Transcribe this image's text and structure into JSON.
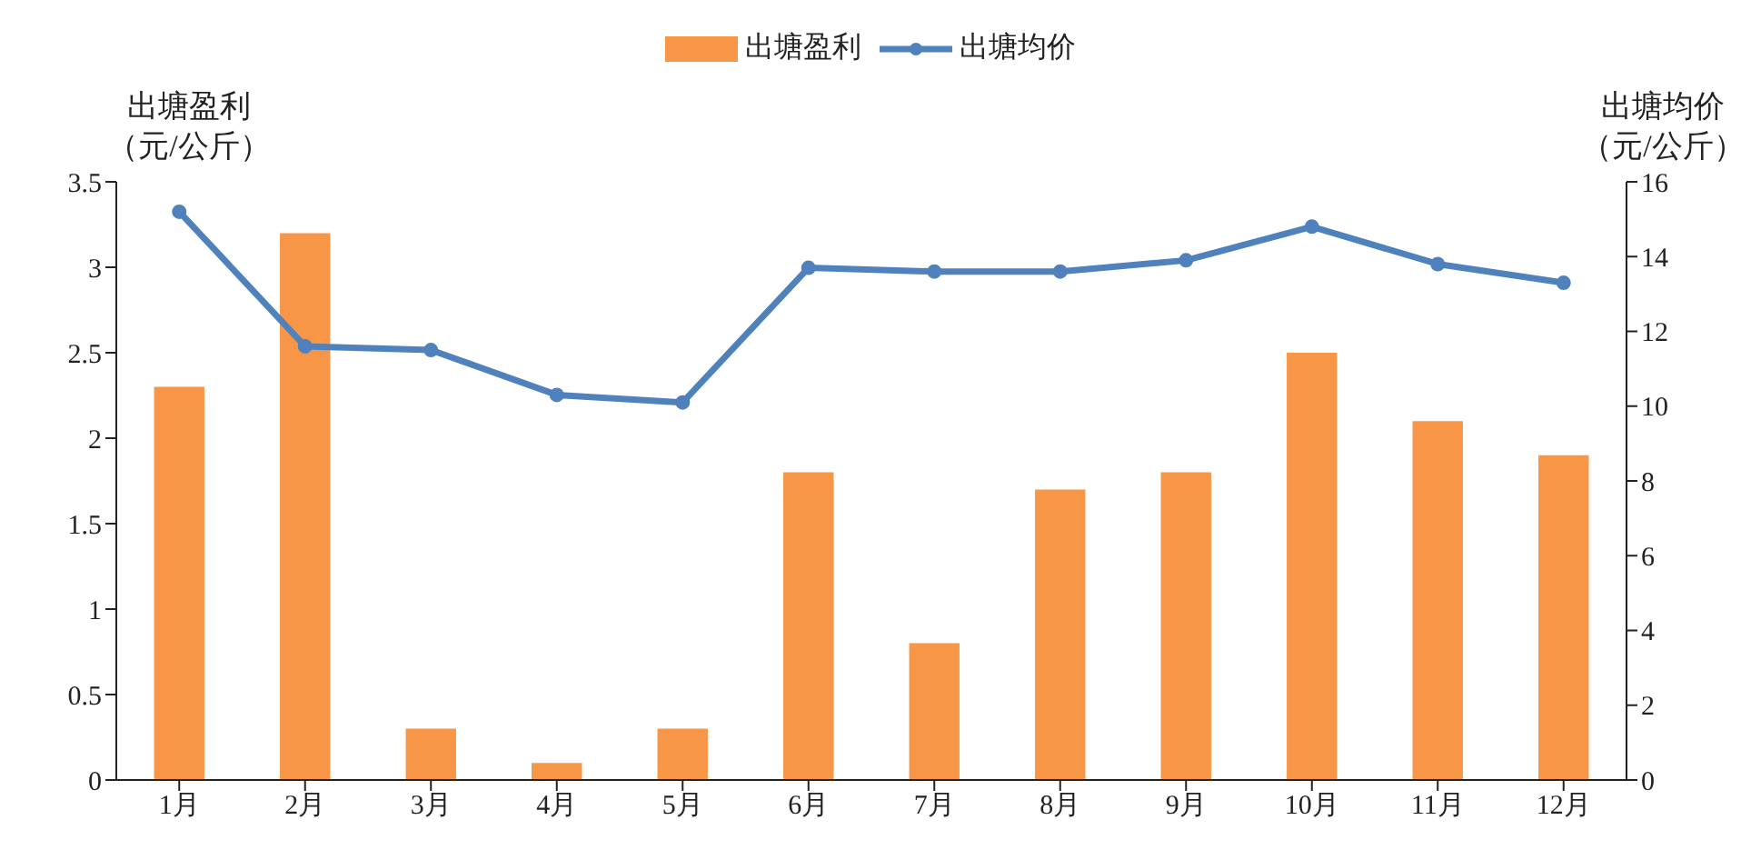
{
  "chart_data": {
    "type": "bar",
    "categories": [
      "1月",
      "2月",
      "3月",
      "4月",
      "5月",
      "6月",
      "7月",
      "8月",
      "9月",
      "10月",
      "11月",
      "12月"
    ],
    "series": [
      {
        "name": "出塘盈利",
        "color": "#f79646",
        "values": [
          2.3,
          3.2,
          0.3,
          0.1,
          0.3,
          1.8,
          0.8,
          1.7,
          1.8,
          2.5,
          2.1,
          1.9
        ]
      },
      {
        "name": "出塘均价",
        "type": "line",
        "axis": "y2",
        "color": "#4f81bd",
        "values": [
          15.2,
          11.6,
          11.5,
          10.3,
          10.1,
          13.7,
          13.6,
          13.6,
          13.9,
          14.8,
          13.8,
          13.3
        ]
      }
    ],
    "ylabel": "出塘盈利（元/公斤）",
    "y2label": "出塘均价（元/公斤）",
    "ylim": [
      0,
      3.5
    ],
    "yticks": [
      0,
      0.5,
      1,
      1.5,
      2,
      2.5,
      3,
      3.5
    ],
    "y2lim": [
      0,
      16
    ],
    "y2ticks": [
      0,
      2,
      4,
      6,
      8,
      10,
      12,
      14,
      16
    ],
    "legend": "top",
    "grid": false,
    "marker": "circle",
    "line_style": "solid"
  }
}
